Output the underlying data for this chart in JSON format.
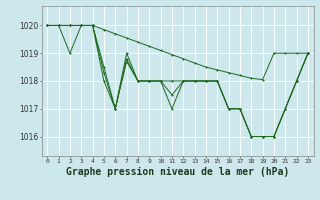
{
  "background_color": "#cce8ec",
  "grid_color": "#ffffff",
  "line_color": "#1a6b1a",
  "xlabel": "Graphe pression niveau de la mer (hPa)",
  "xlabel_fontsize": 7,
  "ylabel_ticks": [
    1016,
    1017,
    1018,
    1019,
    1020
  ],
  "xlim": [
    -0.5,
    23.5
  ],
  "ylim": [
    1015.3,
    1020.7
  ],
  "s1": [
    1020,
    1020,
    1020,
    1020,
    1020,
    1019.85,
    1019.7,
    1019.55,
    1019.4,
    1019.25,
    1019.1,
    1018.95,
    1018.8,
    1018.65,
    1018.5,
    1018.4,
    1018.3,
    1018.2,
    1018.1,
    1018.05,
    1019.0,
    1019.0,
    1019.0,
    1019.0
  ],
  "s2": [
    1020,
    1020,
    1020,
    1020,
    1020,
    1018,
    1017,
    1019,
    1018,
    1018,
    1018,
    1017,
    1018,
    1018,
    1018,
    1018,
    1017,
    1017,
    1016,
    1016,
    1016,
    1017,
    1018,
    1019
  ],
  "s3": [
    1020,
    1020,
    1020,
    1020,
    1020,
    1018.3,
    1017,
    1018.8,
    1018,
    1018,
    1018,
    1017.5,
    1018,
    1018,
    1018,
    1018,
    1017,
    1017,
    1016,
    1016,
    1016,
    1017,
    1018,
    1019
  ],
  "s4": [
    1020,
    1020,
    1019,
    1020,
    1020,
    1018.5,
    1017,
    1018.7,
    1018,
    1018,
    1018,
    1018,
    1018,
    1018,
    1018,
    1018,
    1017,
    1017,
    1016,
    1016,
    1016,
    1017,
    1018,
    1019
  ],
  "xtick_labels": [
    "0",
    "1",
    "2",
    "3",
    "4",
    "5",
    "6",
    "7",
    "8",
    "9",
    "10",
    "11",
    "12",
    "13",
    "14",
    "15",
    "16",
    "17",
    "18",
    "19",
    "20",
    "21",
    "22",
    "23"
  ]
}
